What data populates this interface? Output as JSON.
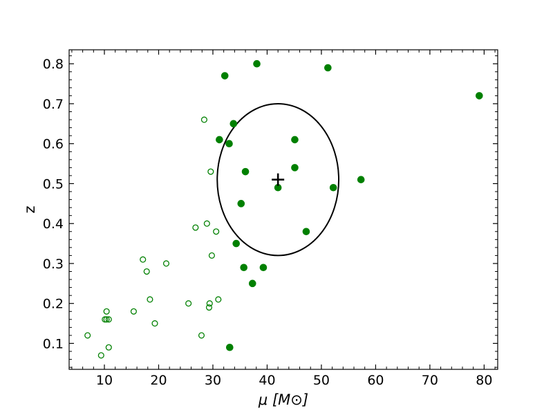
{
  "chart_data": {
    "type": "scatter",
    "title": "",
    "xlabel": "μ [M⊙]",
    "ylabel": "z",
    "xlim": [
      3.5,
      82.5
    ],
    "ylim": [
      0.035,
      0.835
    ],
    "xticks": [
      10,
      20,
      30,
      40,
      50,
      60,
      70,
      80
    ],
    "xtick_labels": [
      "10",
      "20",
      "30",
      "40",
      "50",
      "60",
      "70",
      "80"
    ],
    "yticks": [
      0.1,
      0.2,
      0.3,
      0.4,
      0.5,
      0.6,
      0.7,
      0.8
    ],
    "ytick_labels": [
      "0.1",
      "0.2",
      "0.3",
      "0.4",
      "0.5",
      "0.6",
      "0.7",
      "0.8"
    ],
    "minor_ticks": true,
    "ticks_direction": "in",
    "grid": false,
    "legend": "none",
    "color": "#008000",
    "series": [
      {
        "marker": "filled-circle",
        "points": [
          [
            32.2,
            0.77
          ],
          [
            38.1,
            0.8
          ],
          [
            51.2,
            0.79
          ],
          [
            79.1,
            0.72
          ],
          [
            33.8,
            0.65
          ],
          [
            31.2,
            0.61
          ],
          [
            33.0,
            0.6
          ],
          [
            45.1,
            0.61
          ],
          [
            36.0,
            0.53
          ],
          [
            45.1,
            0.54
          ],
          [
            42.0,
            0.49
          ],
          [
            52.2,
            0.49
          ],
          [
            57.3,
            0.51
          ],
          [
            35.2,
            0.45
          ],
          [
            47.2,
            0.38
          ],
          [
            34.3,
            0.35
          ],
          [
            35.7,
            0.29
          ],
          [
            39.3,
            0.29
          ],
          [
            37.3,
            0.25
          ],
          [
            33.1,
            0.09
          ]
        ]
      },
      {
        "marker": "open-circle",
        "points": [
          [
            28.4,
            0.66
          ],
          [
            29.6,
            0.53
          ],
          [
            26.8,
            0.39
          ],
          [
            28.9,
            0.4
          ],
          [
            30.6,
            0.38
          ],
          [
            29.8,
            0.32
          ],
          [
            17.1,
            0.31
          ],
          [
            21.4,
            0.3
          ],
          [
            17.8,
            0.28
          ],
          [
            18.4,
            0.21
          ],
          [
            25.5,
            0.2
          ],
          [
            29.4,
            0.2
          ],
          [
            29.3,
            0.19
          ],
          [
            31.0,
            0.21
          ],
          [
            15.4,
            0.18
          ],
          [
            10.4,
            0.18
          ],
          [
            10.1,
            0.16
          ],
          [
            10.4,
            0.16
          ],
          [
            10.8,
            0.16
          ],
          [
            19.3,
            0.15
          ],
          [
            6.9,
            0.12
          ],
          [
            27.9,
            0.12
          ],
          [
            10.8,
            0.09
          ],
          [
            9.4,
            0.07
          ]
        ]
      }
    ],
    "cross_marker": {
      "x": 42.0,
      "y": 0.51,
      "color": "#000000"
    },
    "ellipse": {
      "cx": 42.0,
      "cy": 0.51,
      "rx": 11.2,
      "ry": 0.19,
      "color": "#000000"
    }
  }
}
